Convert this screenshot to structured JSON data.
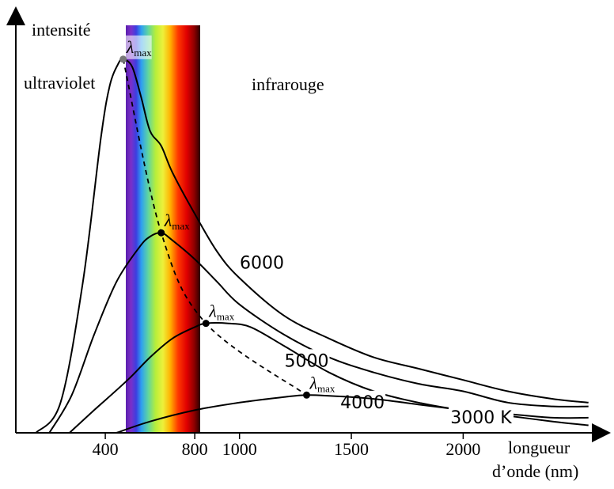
{
  "chart_data": {
    "type": "line",
    "title": "",
    "ylabel": "intensité",
    "xlabel_line1": "longueur",
    "xlabel_line2": "d’onde (nm)",
    "xlim": [
      0,
      2600
    ],
    "ylim": [
      0,
      1.0
    ],
    "x_ticks": [
      {
        "value": 400,
        "label": "400"
      },
      {
        "value": 800,
        "label": "800"
      },
      {
        "value": 1000,
        "label": "1000"
      },
      {
        "value": 1500,
        "label": "1500"
      },
      {
        "value": 2000,
        "label": "2000"
      }
    ],
    "region_labels": {
      "uv": "ultraviolet",
      "ir": "infrarouge"
    },
    "visible_band": [
      400,
      760
    ],
    "peak_symbol": "λ",
    "peak_subscript": "max",
    "series": [
      {
        "name": "6000",
        "label": "6000",
        "x": [
          90,
          200,
          300,
          380,
          420,
          460,
          480,
          520,
          560,
          600,
          650,
          700,
          800,
          900,
          1000,
          1200,
          1400,
          1600,
          1800,
          2000,
          2200,
          2400,
          2560
        ],
        "y": [
          0.0,
          0.08,
          0.4,
          0.78,
          0.92,
          0.98,
          0.99,
          0.97,
          0.89,
          0.8,
          0.76,
          0.69,
          0.58,
          0.48,
          0.41,
          0.31,
          0.25,
          0.2,
          0.17,
          0.14,
          0.11,
          0.09,
          0.08
        ]
      },
      {
        "name": "5000",
        "label": "5000",
        "x": [
          150,
          250,
          350,
          450,
          550,
          600,
          650,
          700,
          800,
          900,
          1000,
          1200,
          1400,
          1600,
          1800,
          2000,
          2200,
          2400,
          2560
        ],
        "y": [
          0.0,
          0.1,
          0.26,
          0.4,
          0.49,
          0.52,
          0.53,
          0.51,
          0.46,
          0.4,
          0.34,
          0.26,
          0.2,
          0.16,
          0.13,
          0.11,
          0.08,
          0.07,
          0.07
        ]
      },
      {
        "name": "4000",
        "label": "4000",
        "x": [
          240,
          350,
          500,
          600,
          700,
          800,
          850,
          950,
          1050,
          1200,
          1400,
          1600,
          1800,
          2000,
          2200,
          2400,
          2560
        ],
        "y": [
          0.0,
          0.06,
          0.14,
          0.2,
          0.25,
          0.28,
          0.29,
          0.29,
          0.28,
          0.23,
          0.16,
          0.11,
          0.08,
          0.06,
          0.05,
          0.04,
          0.04
        ]
      },
      {
        "name": "3000 K",
        "label": "3000 K",
        "x": [
          450,
          600,
          800,
          1000,
          1200,
          1300,
          1400,
          1600,
          1800,
          2000,
          2200,
          2400,
          2560
        ],
        "y": [
          0.0,
          0.03,
          0.06,
          0.08,
          0.095,
          0.1,
          0.098,
          0.09,
          0.075,
          0.06,
          0.045,
          0.03,
          0.02
        ]
      }
    ],
    "peaks": [
      {
        "series": "6000",
        "x": 480,
        "y": 0.99
      },
      {
        "series": "5000",
        "x": 650,
        "y": 0.53
      },
      {
        "series": "4000",
        "x": 850,
        "y": 0.29
      },
      {
        "series": "3000 K",
        "x": 1300,
        "y": 0.1
      }
    ],
    "peak_curve_style": "dashed",
    "grid": false,
    "colors": {
      "axis": "#000000",
      "curve": "#000000",
      "band_dark": "#2a0000"
    }
  }
}
